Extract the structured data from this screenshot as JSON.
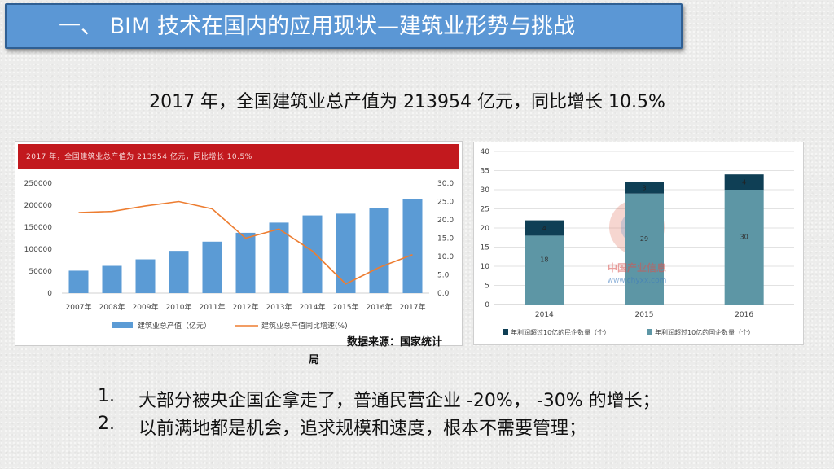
{
  "title": "一、 BIM 技术在国内的应用现状—建筑业形势与挑战",
  "subtitle": "2017 年，全国建筑业总产值为 213954 亿元，同比增长 10.5%",
  "source_line1": "数据来源：国家统计",
  "source_line2": "局",
  "points": [
    {
      "num": "1.",
      "text": "大部分被央企国企拿走了，普通民营企业 -20%， -30% 的增长；"
    },
    {
      "num": "2.",
      "text": "以前满地都是机会，追求规模和速度，根本不需要管理；"
    }
  ],
  "colors": {
    "banner": "#5b97d5",
    "bar_blue": "#5b9bd5",
    "line_orange": "#ed7d31",
    "bar_dark": "#0f3f55",
    "bar_teal": "#5d96a5",
    "header_red": "#c2191e"
  },
  "chart_data": [
    {
      "type": "bar",
      "title": "2017 年，全国建筑业总产值为 213954 亿元，同比增长 10.5%",
      "categories": [
        "2007年",
        "2008年",
        "2009年",
        "2010年",
        "2011年",
        "2012年",
        "2013年",
        "2014年",
        "2015年",
        "2016年",
        "2017年"
      ],
      "y_ticks": [
        "250000",
        "200000",
        "150000",
        "100000",
        "50000",
        "0"
      ],
      "y2_ticks": [
        "30.0",
        "25.0",
        "20.0",
        "15.0",
        "10.0",
        "5.0",
        "0.0"
      ],
      "ylim": [
        0,
        250000
      ],
      "y2lim": [
        0,
        30
      ],
      "series": [
        {
          "name": "建筑业总产值（亿元）",
          "type": "bar",
          "values": [
            51044,
            62037,
            76808,
            96031,
            117060,
            137218,
            160366,
            176713,
            180757,
            193567,
            213954
          ]
        },
        {
          "name": "建筑业总产值同比增速(%)",
          "type": "line",
          "axis": "right",
          "values": [
            22.0,
            22.3,
            23.8,
            25.0,
            23.0,
            15.0,
            17.5,
            11.5,
            2.5,
            7.0,
            10.5
          ]
        }
      ],
      "legend": "bottom"
    },
    {
      "type": "bar",
      "stacked": true,
      "categories": [
        "2014",
        "2015",
        "2016"
      ],
      "y_ticks": [
        "40",
        "35",
        "30",
        "25",
        "20",
        "15",
        "10",
        "5",
        "0"
      ],
      "ylim": [
        0,
        40
      ],
      "series": [
        {
          "name": "年利润超过10亿的国企数量（个）",
          "values": [
            18,
            29,
            30
          ]
        },
        {
          "name": "年利润超过10亿的民企数量（个）",
          "values": [
            4,
            3,
            4
          ]
        }
      ],
      "data_labels": {
        "top": [
          "4",
          "3",
          "4"
        ],
        "bottom": [
          "18",
          "29",
          "30"
        ]
      },
      "legend": "bottom",
      "watermark": [
        "中国产业信息",
        "www.chyxx.com"
      ]
    }
  ]
}
